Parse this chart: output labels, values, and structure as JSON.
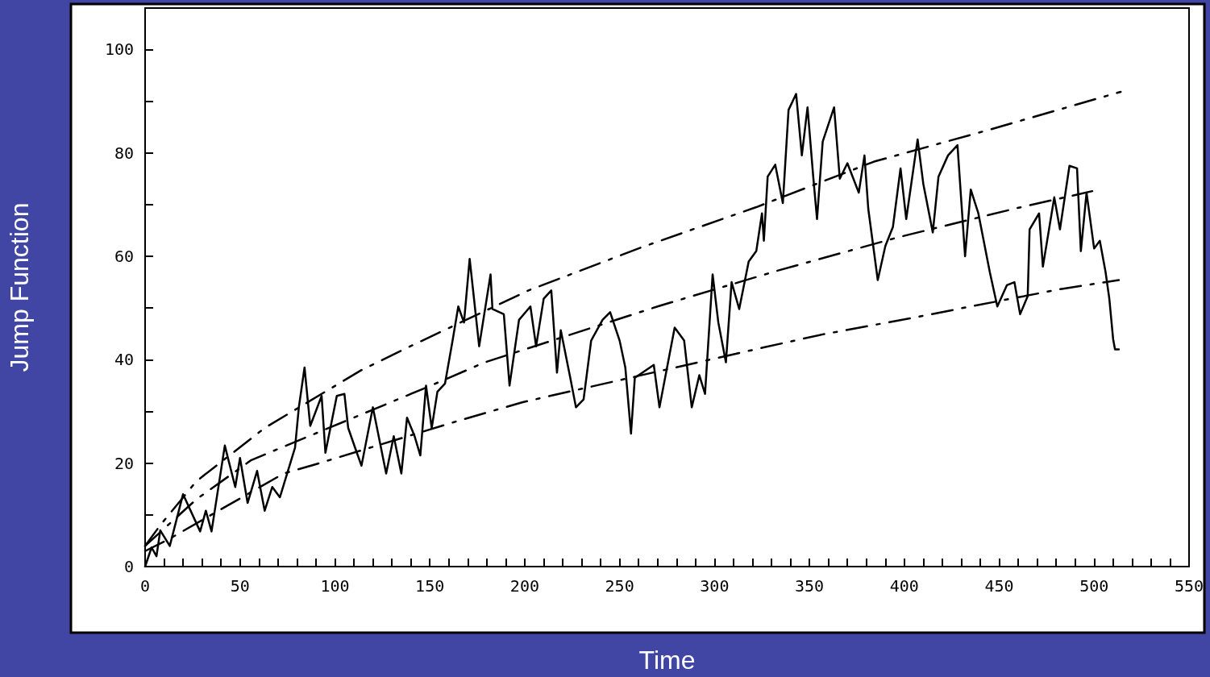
{
  "chart_data": {
    "type": "line",
    "xlabel": "Time",
    "ylabel": "Jump Function",
    "xlim": [
      0,
      550
    ],
    "ylim": [
      0,
      108
    ],
    "xticks": [
      0,
      {
        "value": 10,
        "label": null
      },
      {
        "value": 20,
        "label": null
      },
      {
        "value": 30,
        "label": null
      },
      {
        "value": 40,
        "label": null
      },
      50,
      {
        "value": 60,
        "label": null
      },
      {
        "value": 70,
        "label": null
      },
      {
        "value": 80,
        "label": null
      },
      {
        "value": 90,
        "label": null
      },
      100,
      {
        "value": 110,
        "label": null
      },
      {
        "value": 120,
        "label": null
      },
      {
        "value": 130,
        "label": null
      },
      {
        "value": 140,
        "label": null
      },
      150,
      {
        "value": 160,
        "label": null
      },
      {
        "value": 170,
        "label": null
      },
      {
        "value": 180,
        "label": null
      },
      {
        "value": 190,
        "label": null
      },
      200,
      {
        "value": 210,
        "label": null
      },
      {
        "value": 220,
        "label": null
      },
      {
        "value": 230,
        "label": null
      },
      {
        "value": 240,
        "label": null
      },
      250,
      {
        "value": 260,
        "label": null
      },
      {
        "value": 270,
        "label": null
      },
      {
        "value": 280,
        "label": null
      },
      {
        "value": 290,
        "label": null
      },
      300,
      {
        "value": 310,
        "label": null
      },
      {
        "value": 320,
        "label": null
      },
      {
        "value": 330,
        "label": null
      },
      {
        "value": 340,
        "label": null
      },
      350,
      {
        "value": 360,
        "label": null
      },
      {
        "value": 370,
        "label": null
      },
      {
        "value": 380,
        "label": null
      },
      {
        "value": 390,
        "label": null
      },
      400,
      {
        "value": 410,
        "label": null
      },
      {
        "value": 420,
        "label": null
      },
      {
        "value": 430,
        "label": null
      },
      {
        "value": 440,
        "label": null
      },
      450,
      {
        "value": 460,
        "label": null
      },
      {
        "value": 470,
        "label": null
      },
      {
        "value": 480,
        "label": null
      },
      {
        "value": 490,
        "label": null
      },
      500,
      {
        "value": 510,
        "label": null
      },
      {
        "value": 520,
        "label": null
      },
      {
        "value": 530,
        "label": null
      },
      {
        "value": 540,
        "label": null
      },
      550
    ],
    "yticks": [
      0,
      {
        "value": 10,
        "label": null
      },
      20,
      {
        "value": 30,
        "label": null
      },
      40,
      {
        "value": 50,
        "label": null
      },
      60,
      {
        "value": 70,
        "label": null
      },
      80,
      {
        "value": 90,
        "label": null
      },
      100
    ],
    "series": [
      {
        "color": "#000000",
        "x": [
          0,
          3.4,
          6,
          8,
          13,
          20,
          29,
          32,
          35,
          42,
          47.5,
          50,
          54,
          59,
          63,
          67,
          71,
          79,
          81,
          84,
          87,
          93,
          95,
          101,
          105,
          107,
          111,
          114,
          120,
          127,
          131,
          135,
          138,
          142,
          145,
          148,
          151,
          154,
          158,
          162,
          165,
          168,
          171,
          176,
          182,
          183,
          189,
          192,
          197,
          203,
          206,
          210,
          214,
          217,
          219,
          224,
          227,
          231,
          235,
          241,
          245,
          250,
          253,
          256,
          258,
          268,
          271,
          279,
          284,
          288,
          292,
          295,
          299,
          302,
          306,
          309,
          313,
          318,
          322,
          325,
          326,
          328,
          332,
          336,
          339,
          343,
          346,
          349,
          352,
          354,
          357,
          363,
          366,
          370,
          376,
          379,
          381,
          386,
          390,
          394,
          398,
          401,
          407,
          410,
          415,
          418,
          423,
          428,
          432,
          435,
          439,
          445,
          449,
          454,
          458,
          461,
          465,
          466,
          471,
          473,
          479,
          482,
          487,
          491,
          493,
          496,
          500,
          503,
          506,
          508,
          510,
          511,
          513
        ],
        "values": [
          0,
          3.7,
          2,
          7,
          4,
          14,
          6.8,
          10.8,
          6.8,
          23.4,
          15.4,
          21,
          12.3,
          18.5,
          10.8,
          15.4,
          13.4,
          23,
          30.8,
          38.5,
          27.2,
          33,
          22,
          33,
          33.4,
          26.8,
          22.6,
          19.5,
          30.8,
          18,
          25.2,
          18,
          28.8,
          25.2,
          21.5,
          35,
          26.8,
          33.8,
          35.4,
          43.7,
          50.3,
          47.2,
          59.5,
          42.6,
          56.5,
          49.8,
          48.8,
          35,
          47.7,
          50.3,
          42.6,
          51.8,
          53.4,
          37.5,
          45.7,
          36.5,
          30.8,
          32.3,
          43.7,
          47.7,
          49.2,
          43.7,
          38.5,
          25.7,
          36.5,
          39,
          30.8,
          46.2,
          43.7,
          30.8,
          37,
          33.4,
          56.5,
          47.2,
          39.5,
          55,
          49.8,
          59,
          61,
          68.3,
          63,
          75.4,
          77.7,
          70.3,
          88.3,
          91.4,
          79.5,
          88.8,
          75.4,
          67.2,
          82.2,
          88.8,
          75,
          78,
          72.3,
          79.5,
          69.2,
          55.4,
          62,
          65.7,
          77,
          67.2,
          82.6,
          74,
          64.6,
          75.4,
          79.5,
          81.5,
          60,
          72.9,
          68.3,
          57,
          50.3,
          54.4,
          55,
          48.8,
          52.3,
          65.2,
          68.3,
          58,
          71.4,
          65.2,
          77.5,
          77,
          61,
          72.3,
          61.5,
          63,
          57,
          51.8,
          44,
          42,
          42
        ]
      },
      {
        "color": "#000000",
        "line_style": "dashed",
        "x": [
          0,
          8,
          27,
          63,
          114,
          142,
          202,
          262,
          322,
          384,
          445,
          514
        ],
        "values": [
          4,
          8,
          16.5,
          26.8,
          38,
          43,
          53.4,
          61.8,
          69.5,
          78.3,
          84.5,
          91.8
        ]
      },
      {
        "color": "#000000",
        "line_style": "dashed",
        "x": [
          0,
          27,
          56,
          148,
          179,
          270,
          333,
          397,
          458,
          499
        ],
        "values": [
          4,
          13,
          20.6,
          34.6,
          39.5,
          50.3,
          57.2,
          63.7,
          69.2,
          72.6
        ]
      },
      {
        "color": "#000000",
        "line_style": "dashed",
        "x": [
          0,
          12,
          73,
          90,
          166,
          199,
          325,
          357,
          403,
          435,
          483,
          513
        ],
        "values": [
          3,
          5.2,
          18,
          19.8,
          28.3,
          31.8,
          42.3,
          44.9,
          48,
          50.3,
          53.7,
          55.4
        ]
      }
    ]
  }
}
